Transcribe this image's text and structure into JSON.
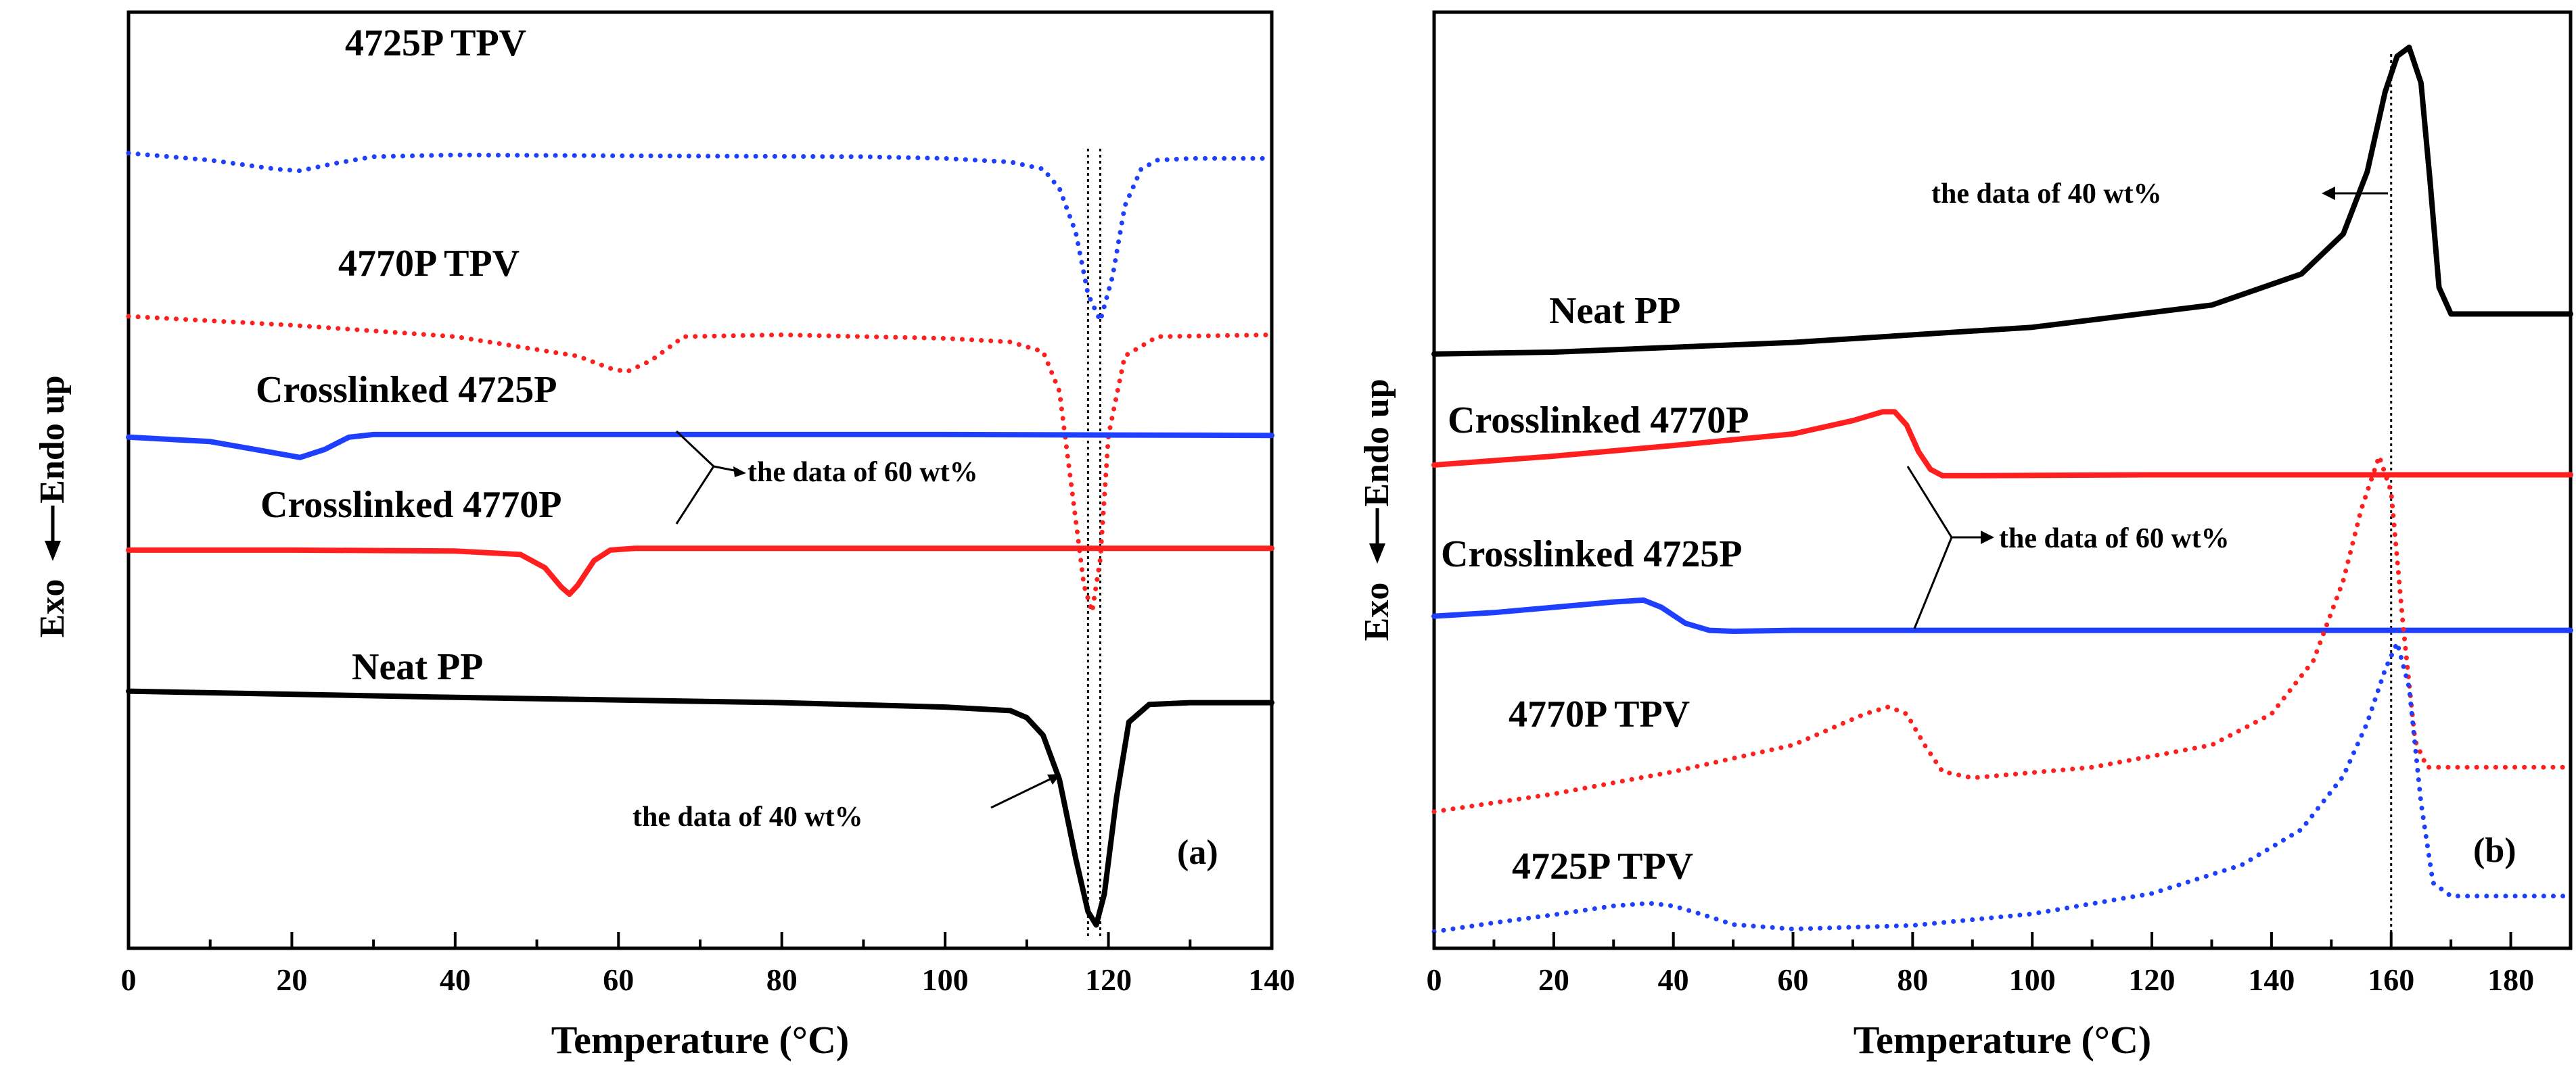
{
  "chart_data": [
    {
      "type": "line",
      "panel_label": "(a)",
      "xlabel": "Temperature (°C)",
      "ylabel_top": "Endo up",
      "ylabel_bottom": "Exo",
      "xlim": [
        0,
        140
      ],
      "xticks": [
        0,
        20,
        40,
        60,
        80,
        100,
        120,
        140
      ],
      "series": [
        {
          "name": "4725P TPV",
          "color": "#1f3fff",
          "style": "dotted",
          "x": [
            0,
            10,
            18,
            21,
            25,
            30,
            40,
            60,
            90,
            100,
            108,
            112,
            114,
            116,
            117.5,
            119,
            120.5,
            122,
            124,
            126,
            130,
            140
          ],
          "y": [
            0.88,
            0.872,
            0.862,
            0.86,
            0.868,
            0.876,
            0.878,
            0.877,
            0.876,
            0.874,
            0.87,
            0.862,
            0.84,
            0.79,
            0.72,
            0.69,
            0.74,
            0.82,
            0.862,
            0.872,
            0.874,
            0.874
          ]
        },
        {
          "name": "4770P TPV",
          "color": "#ff1f1f",
          "style": "dotted",
          "x": [
            0,
            20,
            40,
            55,
            59,
            61,
            64,
            68,
            80,
            100,
            108,
            112,
            114,
            115.5,
            117,
            118,
            119,
            120,
            122,
            126,
            140
          ],
          "y": [
            0.695,
            0.685,
            0.672,
            0.65,
            0.636,
            0.632,
            0.645,
            0.672,
            0.674,
            0.67,
            0.666,
            0.655,
            0.61,
            0.5,
            0.39,
            0.36,
            0.42,
            0.56,
            0.65,
            0.672,
            0.674
          ]
        },
        {
          "name": "Crosslinked 4725P",
          "color": "#1f3fff",
          "style": "solid",
          "x": [
            0,
            10,
            18,
            21,
            24,
            27,
            30,
            60,
            100,
            140
          ],
          "y": [
            0.558,
            0.553,
            0.54,
            0.535,
            0.544,
            0.558,
            0.561,
            0.561,
            0.561,
            0.56
          ]
        },
        {
          "name": "Crosslinked 4770P",
          "color": "#ff1f1f",
          "style": "solid",
          "x": [
            0,
            20,
            40,
            48,
            51,
            53,
            54,
            55,
            57,
            59,
            62,
            80,
            100,
            140
          ],
          "y": [
            0.43,
            0.43,
            0.429,
            0.425,
            0.41,
            0.388,
            0.38,
            0.39,
            0.418,
            0.43,
            0.432,
            0.432,
            0.432,
            0.432
          ]
        },
        {
          "name": "Neat PP",
          "color": "#000000",
          "style": "solid",
          "x": [
            0,
            40,
            80,
            100,
            108,
            110,
            112,
            114,
            116,
            117.5,
            118.5,
            119.5,
            121,
            122.5,
            125,
            130,
            140
          ],
          "y": [
            0.27,
            0.263,
            0.257,
            0.252,
            0.248,
            0.24,
            0.22,
            0.17,
            0.08,
            0.02,
            0.005,
            0.04,
            0.15,
            0.235,
            0.255,
            0.257,
            0.257
          ]
        }
      ],
      "series_labels": [
        "4725P TPV",
        "4770P TPV",
        "Crosslinked 4725P",
        "Crosslinked 4770P",
        "Neat PP"
      ],
      "annotations": [
        "the data of 60 wt%",
        "the data of 40 wt%"
      ],
      "reference_lines_x": [
        117.5,
        119
      ]
    },
    {
      "type": "line",
      "panel_label": "(b)",
      "xlabel": "Temperature (°C)",
      "ylabel_top": "Endo up",
      "ylabel_bottom": "Exo",
      "xlim": [
        0,
        190
      ],
      "xticks": [
        0,
        20,
        40,
        60,
        80,
        100,
        120,
        140,
        160,
        180
      ],
      "series": [
        {
          "name": "Neat PP",
          "color": "#000000",
          "style": "solid",
          "x": [
            0,
            20,
            60,
            100,
            130,
            145,
            152,
            156,
            159,
            161,
            163,
            165,
            166.5,
            168,
            170,
            175,
            190
          ],
          "y": [
            0.655,
            0.657,
            0.668,
            0.685,
            0.71,
            0.745,
            0.79,
            0.86,
            0.95,
            0.99,
            1.0,
            0.96,
            0.85,
            0.73,
            0.7,
            0.7,
            0.7
          ]
        },
        {
          "name": "Crosslinked 4770P",
          "color": "#ff1f1f",
          "style": "solid",
          "x": [
            0,
            20,
            40,
            60,
            70,
            75,
            77,
            79,
            81,
            83,
            85,
            90,
            120,
            160,
            190
          ],
          "y": [
            0.53,
            0.54,
            0.552,
            0.565,
            0.58,
            0.59,
            0.59,
            0.575,
            0.545,
            0.525,
            0.518,
            0.518,
            0.519,
            0.519,
            0.519
          ]
        },
        {
          "name": "Crosslinked 4725P",
          "color": "#1f3fff",
          "style": "solid",
          "x": [
            0,
            10,
            20,
            30,
            35,
            38,
            42,
            46,
            50,
            60,
            100,
            160,
            190
          ],
          "y": [
            0.36,
            0.364,
            0.37,
            0.376,
            0.378,
            0.37,
            0.352,
            0.344,
            0.343,
            0.344,
            0.344,
            0.344,
            0.344
          ]
        },
        {
          "name": "4770P TPV",
          "color": "#ff1f1f",
          "style": "dotted",
          "x": [
            0,
            20,
            40,
            60,
            72,
            76,
            79,
            82,
            85,
            90,
            110,
            130,
            140,
            147,
            152,
            155,
            158,
            160,
            162,
            164,
            166,
            170,
            190
          ],
          "y": [
            0.14,
            0.16,
            0.185,
            0.215,
            0.25,
            0.258,
            0.25,
            0.215,
            0.185,
            0.178,
            0.19,
            0.215,
            0.25,
            0.31,
            0.4,
            0.48,
            0.54,
            0.5,
            0.35,
            0.22,
            0.19,
            0.19,
            0.19
          ]
        },
        {
          "name": "4725P TPV",
          "color": "#1f3fff",
          "style": "dotted",
          "x": [
            0,
            10,
            20,
            30,
            36,
            40,
            45,
            50,
            60,
            80,
            100,
            120,
            135,
            145,
            152,
            156,
            159,
            161,
            163,
            165,
            167,
            170,
            190
          ],
          "y": [
            0.005,
            0.015,
            0.024,
            0.034,
            0.037,
            0.034,
            0.024,
            0.013,
            0.008,
            0.012,
            0.025,
            0.048,
            0.08,
            0.12,
            0.18,
            0.24,
            0.3,
            0.33,
            0.28,
            0.15,
            0.06,
            0.045,
            0.045
          ]
        }
      ],
      "series_labels": [
        "Neat PP",
        "Crosslinked 4770P",
        "Crosslinked 4725P",
        "4770P TPV",
        "4725P TPV"
      ],
      "annotations": [
        "the data of 40 wt%",
        "the data of 60 wt%"
      ],
      "reference_lines_x": [
        160
      ]
    }
  ]
}
